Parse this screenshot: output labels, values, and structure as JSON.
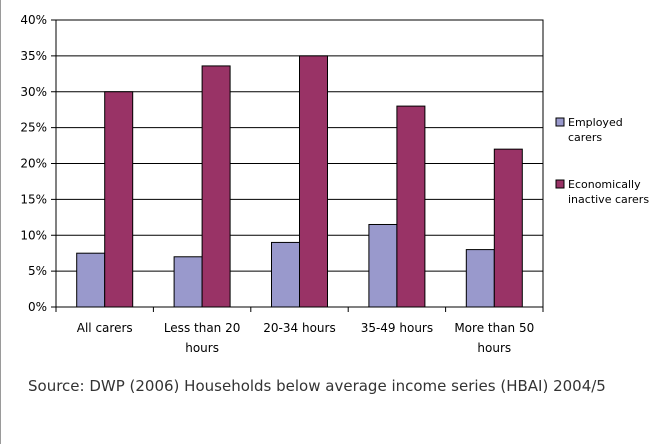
{
  "chart_data": {
    "type": "bar",
    "categories": [
      [
        "All carers"
      ],
      [
        "Less than 20",
        "hours"
      ],
      [
        "20-34 hours"
      ],
      [
        "35-49 hours"
      ],
      [
        "More than 50",
        "hours"
      ]
    ],
    "series": [
      {
        "name": "Employed carers",
        "legend_lines": [
          "Employed",
          "carers"
        ],
        "color": "#9999cc",
        "values": [
          7.5,
          7,
          9,
          11.5,
          8
        ]
      },
      {
        "name": "Economically inactive carers",
        "legend_lines": [
          "Economically",
          "inactive carers"
        ],
        "color": "#993366",
        "values": [
          30,
          33.6,
          35,
          28,
          22
        ]
      }
    ],
    "ylim": [
      0,
      40
    ],
    "yticks": [
      0,
      5,
      10,
      15,
      20,
      25,
      30,
      35,
      40
    ],
    "ytick_labels": [
      "0%",
      "5%",
      "10%",
      "15%",
      "20%",
      "25%",
      "30%",
      "35%",
      "40%"
    ],
    "grid": true,
    "legend_position": "right",
    "title": "",
    "xlabel": "",
    "ylabel": ""
  },
  "source_text": "Source: DWP (2006) Households below average income series (HBAI) 2004/5"
}
